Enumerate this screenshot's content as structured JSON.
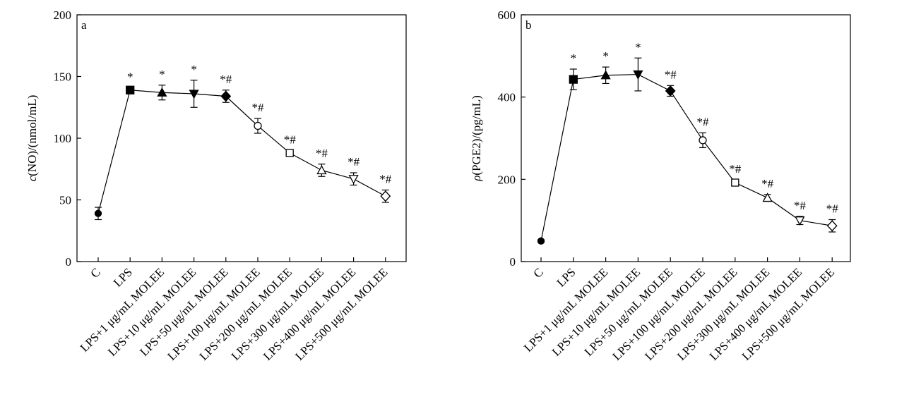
{
  "chart_data": [
    {
      "type": "line",
      "panel_label": "a",
      "ylabel_var": "c",
      "ylabel_rest": "(NO)/(nmol/mL)",
      "ylim": [
        0,
        200
      ],
      "yticks": [
        0,
        50,
        100,
        150,
        200
      ],
      "categories": [
        "C",
        "LPS",
        "LPS+1 μg/mL MOLEE",
        "LPS+10 μg/mL MOLEE",
        "LPS+50 μg/mL MOLEE",
        "LPS+100 μg/mL MOLEE",
        "LPS+200 μg/mL MOLEE",
        "LPS+300 μg/mL MOLEE",
        "LPS+400 μg/mL MOLEE",
        "LPS+500 μg/mL MOLEE"
      ],
      "values": [
        39,
        139,
        137,
        136,
        134,
        110,
        88,
        74,
        67,
        53
      ],
      "errors": [
        5,
        2,
        6,
        11,
        5,
        6,
        2,
        5,
        5,
        5
      ],
      "markers": [
        "circle-filled",
        "square-filled",
        "triangle-up-filled",
        "triangle-down-filled",
        "diamond-filled",
        "circle-open",
        "square-open",
        "triangle-up-open",
        "triangle-down-open",
        "diamond-open"
      ],
      "annotations": [
        "",
        "*",
        "*",
        "*",
        "*#",
        "*#",
        "*#",
        "*#",
        "*#",
        "*#"
      ],
      "grid": false,
      "legend": "none"
    },
    {
      "type": "line",
      "panel_label": "b",
      "ylabel_var": "ρ",
      "ylabel_rest": "(PGE2)/(pg/mL)",
      "ylim": [
        0,
        600
      ],
      "yticks": [
        0,
        200,
        400,
        600
      ],
      "categories": [
        "C",
        "LPS",
        "LPS+1 μg/mL MOLEE",
        "LPS+10 μg/mL MOLEE",
        "LPS+50 μg/mL MOLEE",
        "LPS+100 μg/mL MOLEE",
        "LPS+200 μg/mL MOLEE",
        "LPS+300 μg/mL MOLEE",
        "LPS+400 μg/mL MOLEE",
        "LPS+500 μg/mL MOLEE"
      ],
      "values": [
        50,
        443,
        453,
        455,
        415,
        295,
        192,
        155,
        100,
        87
      ],
      "errors": [
        3,
        25,
        20,
        40,
        13,
        18,
        7,
        8,
        10,
        15
      ],
      "markers": [
        "circle-filled",
        "square-filled",
        "triangle-up-filled",
        "triangle-down-filled",
        "diamond-filled",
        "circle-open",
        "square-open",
        "triangle-up-open",
        "triangle-down-open",
        "diamond-open"
      ],
      "annotations": [
        "",
        "*",
        "*",
        "*",
        "*#",
        "*#",
        "*#",
        "*#",
        "*#",
        "*#"
      ],
      "grid": false,
      "legend": "none"
    }
  ]
}
